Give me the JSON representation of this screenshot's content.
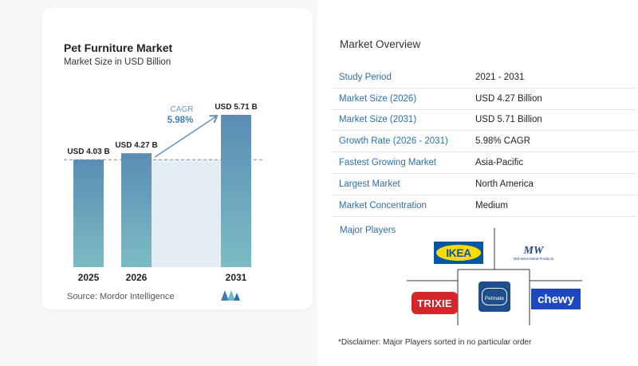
{
  "chart_data": {
    "type": "bar",
    "title": "Pet Furniture Market",
    "subtitle": "Market Size in USD Billion",
    "categories": [
      "2025",
      "2026",
      "2031"
    ],
    "values": [
      4.03,
      4.27,
      5.71
    ],
    "value_labels": [
      "USD 4.03 B",
      "USD 4.27 B",
      "USD 5.71 B"
    ],
    "cagr_label": "CAGR",
    "cagr_value": "5.98%",
    "bar_color_top": "#5b8db5",
    "bar_color_bottom": "#7bbcc4",
    "shade_color": "#e5edf4"
  },
  "source": {
    "text": "Source:  Mordor Intelligence"
  },
  "overview": {
    "title": "Market Overview",
    "rows": [
      {
        "key": "Study Period",
        "value": "2021 - 2031"
      },
      {
        "key": "Market Size (2026)",
        "value": "USD 4.27 Billion"
      },
      {
        "key": "Market Size (2031)",
        "value": "USD 5.71 Billion"
      },
      {
        "key": "Growth Rate (2026 - 2031)",
        "value": "5.98% CAGR"
      },
      {
        "key": "Fastest Growing Market",
        "value": "Asia-Pacific"
      },
      {
        "key": "Largest Market",
        "value": "North America"
      },
      {
        "key": "Market Concentration",
        "value": "Medium"
      }
    ]
  },
  "players": {
    "title": "Major Players",
    "logos": {
      "ikea": "IKEA",
      "midwest_mark": "MW",
      "midwest_name": "Mid-West Metal Products",
      "trixie": "TRIXIE",
      "petmate": "Petmate",
      "chewy": "chewy"
    },
    "disclaimer": "*Disclaimer: Major Players sorted in no particular order"
  },
  "colors": {
    "accent": "#2f6fa8",
    "ikea_blue": "#0058a3",
    "ikea_yellow": "#ffdb00",
    "trixie_red": "#d6262c",
    "petmate_blue": "#1e4f8c",
    "chewy_blue": "#1c49c2"
  }
}
